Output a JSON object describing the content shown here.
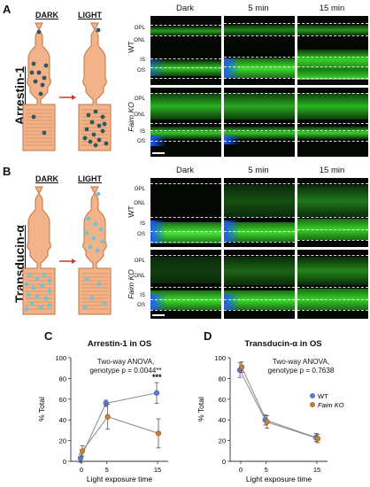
{
  "panels": {
    "A": {
      "label": "A",
      "side_label": "Arrestin-1",
      "dark_label": "DARK",
      "light_label": "LIGHT"
    },
    "B": {
      "label": "B",
      "side_label": "Transducin-α",
      "dark_label": "DARK",
      "light_label": "LIGHT"
    },
    "C": {
      "label": "C"
    },
    "D": {
      "label": "D"
    }
  },
  "micrographs": {
    "timepoints": [
      "Dark",
      "5 min",
      "15 min"
    ],
    "genotypes": [
      "WT",
      "Faim KO"
    ],
    "layers_wt": [
      "OPL",
      "ONL",
      "IS",
      "OS"
    ],
    "layers_ko": [
      "OPL",
      "ONL",
      "IS",
      "OS"
    ]
  },
  "colors": {
    "cell_body": "#f2b38a",
    "cell_outline": "#c4703e",
    "arrestin_dot": "#2e5661",
    "transducin_dot": "#6cc4d4",
    "arrow": "#e0322b",
    "stain_green": "#3ddc2a",
    "dapi_blue": "#1a5cff",
    "wt_series": "#5b7bd5",
    "ko_series": "#c8822f"
  },
  "chart_data": [
    {
      "type": "line",
      "title": "Arrestin-1 in OS",
      "xlabel": "Light exposure time",
      "ylabel": "% Total",
      "x": [
        0,
        5,
        15
      ],
      "xticks": [
        "0",
        "5",
        "15"
      ],
      "ylim": [
        0,
        100
      ],
      "yticks": [
        0,
        20,
        40,
        60,
        80,
        100
      ],
      "annotation_line1": "Two-way ANOVA,",
      "annotation_line2": "genotype p = 0.0044**",
      "significance": "***",
      "series": [
        {
          "values": [
            3,
            56,
            66
          ],
          "errors": [
            4,
            3,
            10
          ]
        },
        {
          "values": [
            10,
            43,
            27
          ],
          "errors": [
            5,
            12,
            14
          ]
        }
      ]
    },
    {
      "type": "line",
      "title": "Transducin-α in OS",
      "xlabel": "Light exposure time",
      "ylabel": "% Total",
      "x": [
        0,
        5,
        15
      ],
      "xticks": [
        "0",
        "5",
        "15"
      ],
      "ylim": [
        0,
        100
      ],
      "yticks": [
        0,
        20,
        40,
        60,
        80,
        100
      ],
      "annotation_line1": "Two-way ANOVA,",
      "annotation_line2": "genotype p = 0.7638",
      "legend": "right",
      "series": [
        {
          "name": "WT",
          "values": [
            88,
            40,
            23
          ],
          "errors": [
            7,
            5,
            4
          ]
        },
        {
          "name": "Faim KO",
          "values": [
            91,
            38,
            22
          ],
          "errors": [
            5,
            6,
            4
          ]
        }
      ]
    }
  ]
}
